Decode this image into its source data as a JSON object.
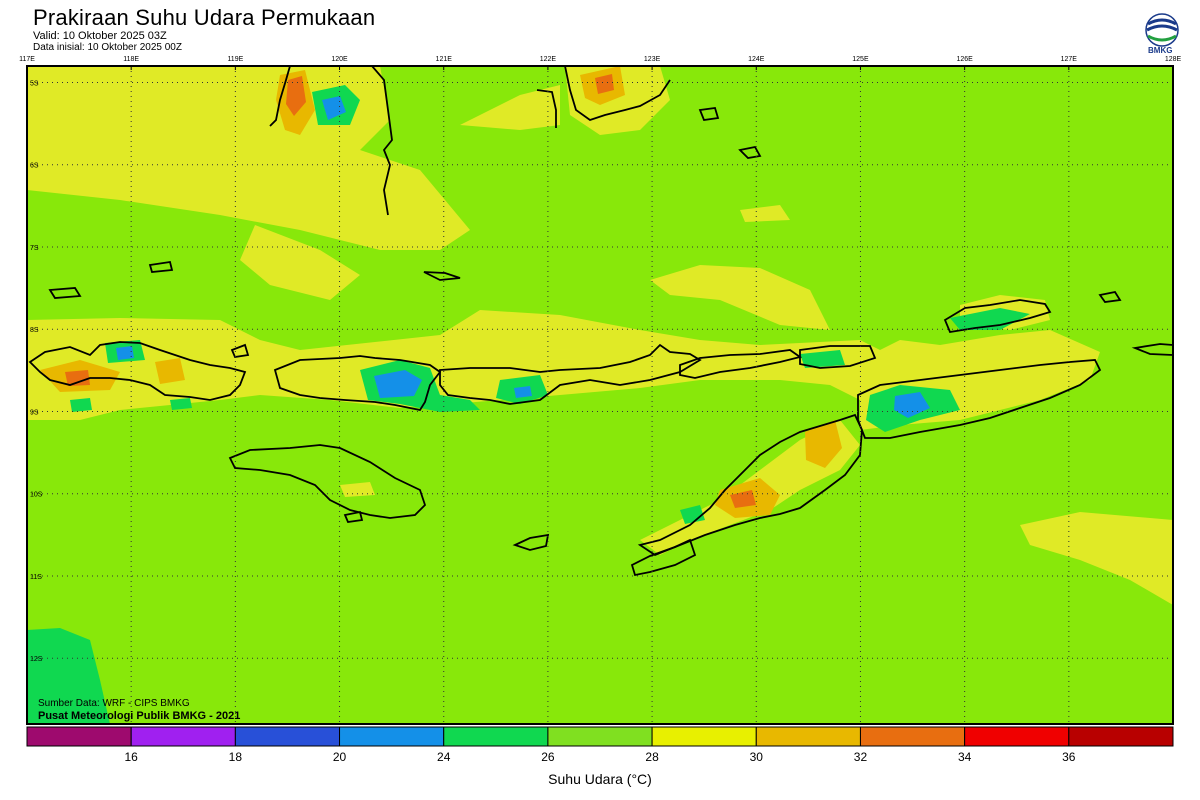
{
  "header": {
    "title": "Prakiraan Suhu Udara Permukaan",
    "valid": "Valid: 10 Oktober 2025 03Z",
    "init": "Data inisial: 10 Oktober 2025 00Z"
  },
  "logo": {
    "text": "BMKG"
  },
  "map": {
    "lon_labels": [
      "117E",
      "118E",
      "119E",
      "120E",
      "121E",
      "122E",
      "123E",
      "124E",
      "125E",
      "126E",
      "127E",
      "128E"
    ],
    "lat_labels": [
      "5S",
      "6S",
      "7S",
      "8S",
      "9S",
      "10S",
      "11S",
      "12S"
    ],
    "lon_range": [
      117,
      128
    ],
    "lat_range": [
      4.8,
      12.8
    ],
    "grid": "dotted"
  },
  "credits": {
    "source": "Sumber Data: WRF - CIPS BMKG",
    "center": "Pusat Meteorologi Publik BMKG - 2021"
  },
  "colorbar": {
    "ticks": [
      "16",
      "18",
      "20",
      "24",
      "26",
      "28",
      "30",
      "32",
      "34",
      "36"
    ],
    "colors": [
      "#9e0a6e",
      "#a020f0",
      "#2850d8",
      "#1490e8",
      "#10d850",
      "#80e020",
      "#e8f000",
      "#e8b800",
      "#e86e10",
      "#f00000",
      "#b80000"
    ],
    "label": "Suhu Udara (°C)"
  }
}
